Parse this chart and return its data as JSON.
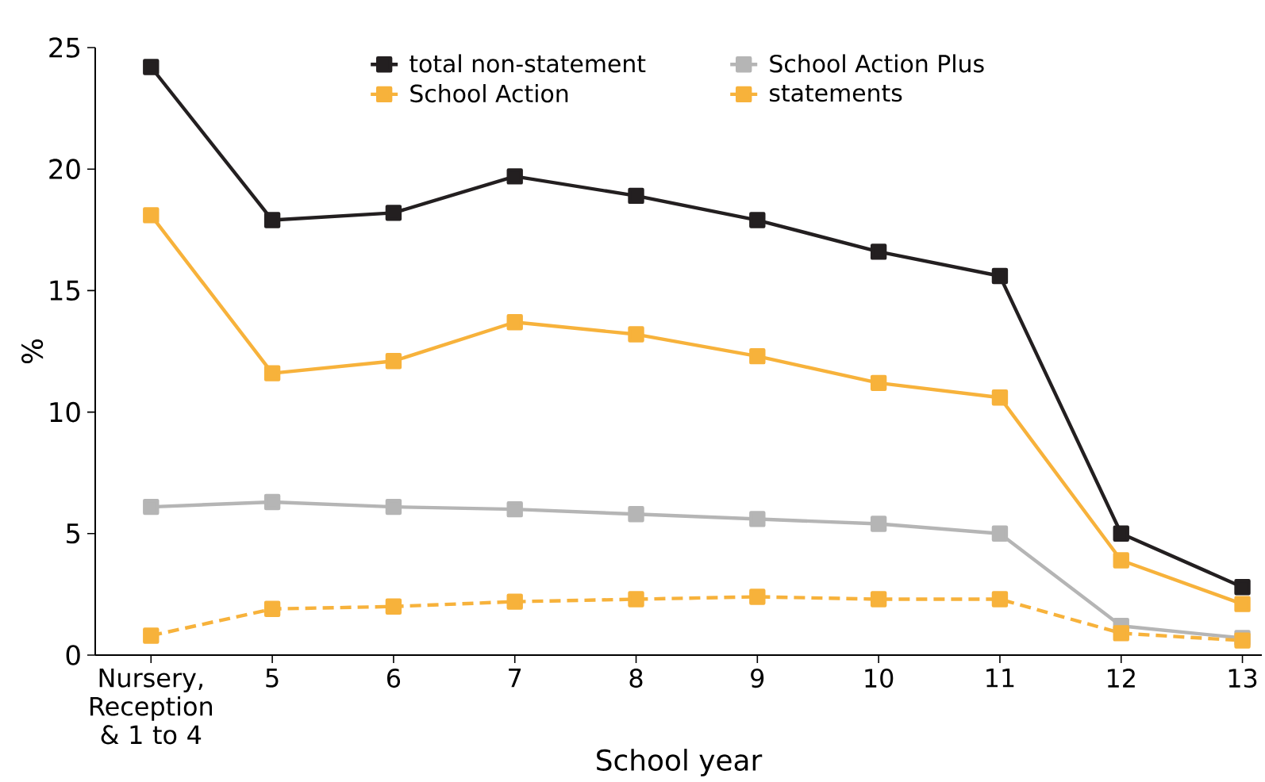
{
  "chart_data": {
    "type": "line",
    "xlabel": "School year",
    "ylabel": "%",
    "categories": [
      "Nursery, Reception & 1 to 4",
      "5",
      "6",
      "7",
      "8",
      "9",
      "10",
      "11",
      "12",
      "13"
    ],
    "ylim": [
      0,
      25
    ],
    "yticks": [
      0,
      5,
      10,
      15,
      20,
      25
    ],
    "grid": false,
    "legend": "top",
    "marker": "square",
    "series": [
      {
        "name": "total non-statement",
        "color": "#231f20",
        "line_style": "solid",
        "values": [
          24.2,
          17.9,
          18.2,
          19.7,
          18.9,
          17.9,
          16.6,
          15.6,
          5.0,
          2.8
        ]
      },
      {
        "name": "School Action Plus",
        "color": "#b5b5b5",
        "line_style": "solid",
        "values": [
          6.1,
          6.3,
          6.1,
          6.0,
          5.8,
          5.6,
          5.4,
          5.0,
          1.2,
          0.7
        ]
      },
      {
        "name": "School Action",
        "color": "#f7b23b",
        "line_style": "solid",
        "values": [
          18.1,
          11.6,
          12.1,
          13.7,
          13.2,
          12.3,
          11.2,
          10.6,
          3.9,
          2.1
        ]
      },
      {
        "name": "statements",
        "color": "#f7b23b",
        "line_style": "dashed",
        "values": [
          0.8,
          1.9,
          2.0,
          2.2,
          2.3,
          2.4,
          2.3,
          2.3,
          0.9,
          0.6
        ]
      }
    ]
  }
}
